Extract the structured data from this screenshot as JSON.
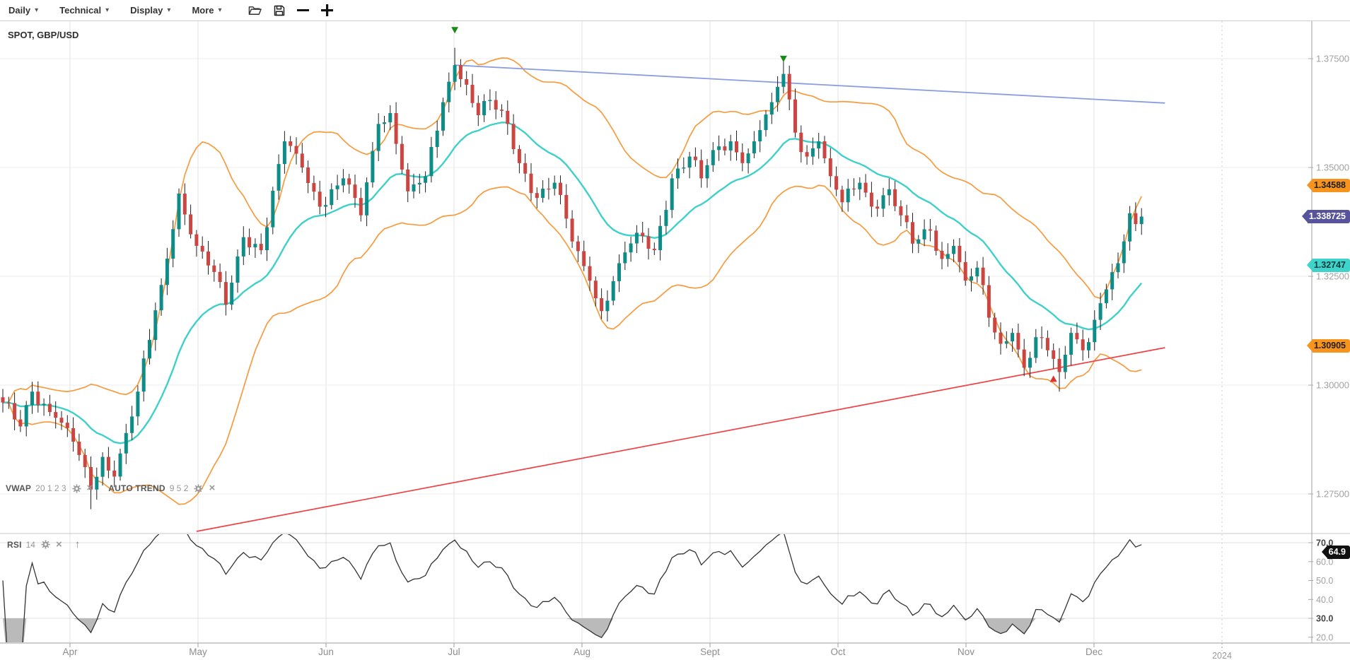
{
  "toolbar": {
    "menus": [
      {
        "label": "Daily"
      },
      {
        "label": "Technical"
      },
      {
        "label": "Display"
      },
      {
        "label": "More"
      }
    ]
  },
  "chart": {
    "symbol_label": "SPOT, GBP/USD",
    "indicator_bar": {
      "vwap_label": "VWAP",
      "vwap_params": "20 1 2 3",
      "autotrend_label": "AUTO TREND",
      "autotrend_params": "9 5 2"
    },
    "rsi_bar": {
      "label": "RSI",
      "params": "14"
    },
    "price_tags": [
      {
        "value": "1.34588",
        "price": 1.34588,
        "color": "#f7941d",
        "text_color": "#1e1e1e"
      },
      {
        "value": "1.338725",
        "price": 1.338725,
        "color": "#57549b",
        "text_color": "#ffffff"
      },
      {
        "value": "1.32747",
        "price": 1.32747,
        "color": "#3ed3cb",
        "text_color": "#103a37"
      },
      {
        "value": "1.30905",
        "price": 1.30905,
        "color": "#f7941d",
        "text_color": "#1e1e1e"
      }
    ],
    "rsi_tag": {
      "value": "64.9",
      "rsi": 64.9,
      "color": "#111111",
      "text_color": "#ffffff"
    }
  },
  "chart_data": {
    "type": "candlestick",
    "title": "SPOT, GBP/USD",
    "timeframe": "Daily",
    "x_axis": {
      "month_labels": [
        "Apr",
        "May",
        "Jun",
        "Jul",
        "Aug",
        "Sept",
        "Oct",
        "Nov",
        "Dec"
      ],
      "next_year_label": "2024"
    },
    "y_axis": {
      "tick_labels": [
        "1.37500",
        "1.35000",
        "1.32500",
        "1.30000",
        "1.27500"
      ],
      "tick_values": [
        1.375,
        1.35,
        1.325,
        1.3,
        1.275
      ]
    },
    "last_price": 1.338725,
    "days_total": 195,
    "price_anchors": [
      [
        0,
        1.296
      ],
      [
        3,
        1.2905
      ],
      [
        5,
        1.2985
      ],
      [
        9,
        1.2925
      ],
      [
        12,
        1.287
      ],
      [
        15,
        1.276
      ],
      [
        17,
        1.2835
      ],
      [
        19,
        1.279
      ],
      [
        23,
        1.2985
      ],
      [
        27,
        1.323
      ],
      [
        30,
        1.344
      ],
      [
        33,
        1.332
      ],
      [
        36,
        1.326
      ],
      [
        38,
        1.3185
      ],
      [
        41,
        1.334
      ],
      [
        44,
        1.331
      ],
      [
        48,
        1.356
      ],
      [
        51,
        1.35
      ],
      [
        54,
        1.341
      ],
      [
        58,
        1.3475
      ],
      [
        61,
        1.339
      ],
      [
        64,
        1.36
      ],
      [
        66,
        1.3625
      ],
      [
        69,
        1.3445
      ],
      [
        72,
        1.348
      ],
      [
        75,
        1.365
      ],
      [
        77,
        1.3735
      ],
      [
        79,
        1.369
      ],
      [
        81,
        1.362
      ],
      [
        83,
        1.3655
      ],
      [
        86,
        1.36
      ],
      [
        88,
        1.351
      ],
      [
        91,
        1.343
      ],
      [
        94,
        1.3465
      ],
      [
        97,
        1.333
      ],
      [
        100,
        1.324
      ],
      [
        102,
        1.317
      ],
      [
        105,
        1.328
      ],
      [
        108,
        1.335
      ],
      [
        111,
        1.331
      ],
      [
        114,
        1.3475
      ],
      [
        117,
        1.3525
      ],
      [
        119,
        1.3475
      ],
      [
        121,
        1.354
      ],
      [
        124,
        1.356
      ],
      [
        126,
        1.351
      ],
      [
        128,
        1.356
      ],
      [
        131,
        1.365
      ],
      [
        133,
        1.3715
      ],
      [
        135,
        1.358
      ],
      [
        137,
        1.3525
      ],
      [
        139,
        1.356
      ],
      [
        141,
        1.348
      ],
      [
        143,
        1.342
      ],
      [
        146,
        1.3465
      ],
      [
        148,
        1.341
      ],
      [
        151,
        1.345
      ],
      [
        153,
        1.339
      ],
      [
        155,
        1.3325
      ],
      [
        158,
        1.3355
      ],
      [
        160,
        1.329
      ],
      [
        162,
        1.332
      ],
      [
        164,
        1.324
      ],
      [
        166,
        1.327
      ],
      [
        168,
        1.3155
      ],
      [
        170,
        1.3095
      ],
      [
        172,
        1.312
      ],
      [
        174,
        1.304
      ],
      [
        176,
        1.311
      ],
      [
        178,
        1.308
      ],
      [
        180,
        1.303
      ],
      [
        182,
        1.312
      ],
      [
        184,
        1.308
      ],
      [
        186,
        1.315
      ],
      [
        188,
        1.322
      ],
      [
        190,
        1.328
      ],
      [
        191,
        1.333
      ],
      [
        192,
        1.3395
      ],
      [
        193,
        1.337
      ],
      [
        194,
        1.33872
      ]
    ],
    "wick_overrides": {
      "15": {
        "low": 1.2715
      },
      "77": {
        "high": 1.3775
      },
      "133": {
        "high": 1.3745
      },
      "180": {
        "low": 1.2985
      }
    },
    "overlays": {
      "vwap": {
        "name": "VWAP",
        "period": 20,
        "color": "#3fd0ca",
        "last_value": 1.32747
      },
      "bands": {
        "period": 20,
        "mult": 1.7,
        "color": "#f79b3e",
        "upper_last": 1.34588,
        "lower_last": 1.30905
      },
      "trend_resistance": {
        "color": "#8a9de0",
        "from_day": 77,
        "from_price": 1.3735,
        "to_day": 198,
        "to_price": 1.3648
      },
      "trend_support": {
        "color": "#ef4146",
        "from_day": 33,
        "from_price": 1.2664,
        "to_day": 198,
        "to_price": 1.3086
      }
    },
    "markers": {
      "sell": [
        {
          "day": 77,
          "price": 1.3808
        },
        {
          "day": 133,
          "price": 1.3742
        }
      ],
      "buy": [
        {
          "day": 179,
          "price": 1.3022
        }
      ],
      "sell_color": "#168c16",
      "buy_color": "#e03030"
    },
    "rsi": {
      "name": "RSI",
      "period": 14,
      "tick_labels": [
        "70.0",
        "60.0",
        "50.0",
        "40.0",
        "30.0",
        "20.0"
      ],
      "tick_values": [
        70,
        60,
        50,
        40,
        30,
        20
      ],
      "overbought": 70,
      "oversold": 30,
      "last_value": 64.9,
      "line_color": "#333333",
      "fill_color": "#b3b3b3"
    },
    "candle_colors": {
      "up": "#0e8c87",
      "down": "#cc4641"
    }
  }
}
